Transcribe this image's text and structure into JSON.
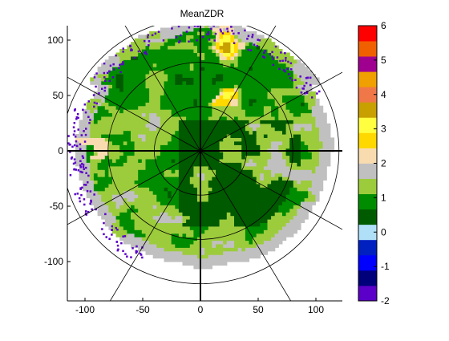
{
  "chart_data": {
    "type": "heatmap",
    "title": "MeanZDR",
    "x_ticks": [
      -100,
      -50,
      0,
      50,
      100
    ],
    "y_ticks": [
      100,
      50,
      0,
      -50,
      -100
    ],
    "xlim": [
      -115,
      122
    ],
    "ylim": [
      -132,
      110
    ],
    "range_rings": [
      40,
      80,
      120
    ],
    "radial_lines_deg": [
      0,
      30,
      60,
      90,
      120,
      150,
      180,
      210,
      240,
      270,
      300,
      330
    ],
    "colorbar": {
      "ticks": [
        "6",
        "5",
        "4",
        "3",
        "2",
        "1",
        "0",
        "-1",
        "-2"
      ],
      "min": -2,
      "max": 6,
      "colors": [
        "#5a00c8",
        "#00007a",
        "#0000ff",
        "#0020c0",
        "#b0e0f8",
        "#005a00",
        "#008c00",
        "#9ccc3c",
        "#c0c0c0",
        "#f8dcb0",
        "#ffd800",
        "#ffff40",
        "#c8a000",
        "#f07848",
        "#f0a000",
        "#a00090",
        "#f06000",
        "#ff0000"
      ]
    },
    "field": {
      "radius": 115,
      "center_region_value": 0.2,
      "annotation": "polar precipitation ZDR field centered at radar"
    }
  }
}
